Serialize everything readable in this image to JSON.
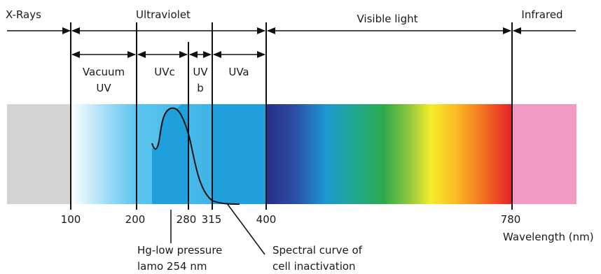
{
  "title_regions": {
    "xrays": "X-Rays",
    "ultraviolet": "Ultraviolet",
    "visible": "Visible light",
    "infrared": "Infrared"
  },
  "uv_bands": {
    "vacuum_line1": "Vacuum",
    "vacuum_line2": "UV",
    "uvc": "UVc",
    "uvb_line1": "UV",
    "uvb_line2": "b",
    "uva": "UVa"
  },
  "ticks": [
    {
      "key": "t100",
      "label": "100"
    },
    {
      "key": "t200",
      "label": "200"
    },
    {
      "key": "t280",
      "label": "280"
    },
    {
      "key": "t315",
      "label": "315"
    },
    {
      "key": "t400",
      "label": "400"
    },
    {
      "key": "t780",
      "label": "780"
    }
  ],
  "axis_label": "Wavelength (nm)",
  "callouts": {
    "lamp_line1": "Hg-low pressure",
    "lamp_line2": "lamo 254 nm",
    "curve_line1": "Spectral curve of",
    "curve_line2": "cell inactivation"
  },
  "colors": {
    "xray_band": "#d4d4d4",
    "uv_band": "#5bc5ef",
    "uvc_highlight": "#1f9fdc",
    "infrared_band": "#f29ac3",
    "line": "#111111"
  }
}
